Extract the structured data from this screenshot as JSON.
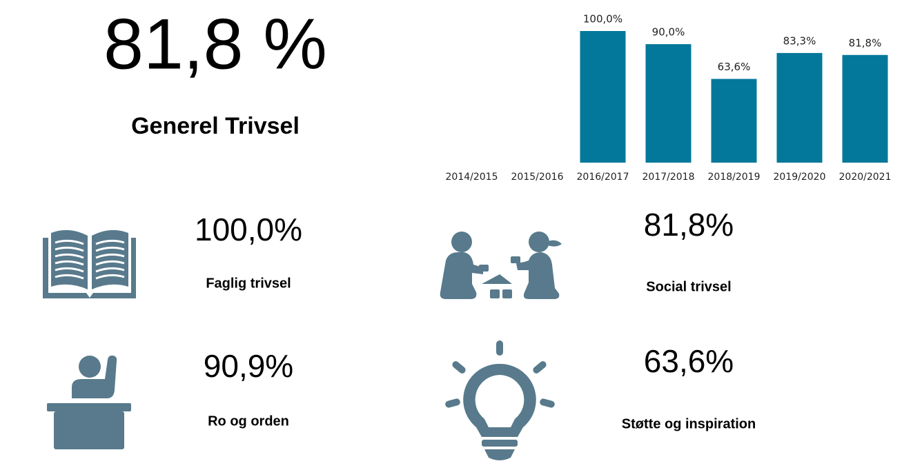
{
  "headline": {
    "value": "81,8 %",
    "label": "Generel Trivsel"
  },
  "chart_data": {
    "type": "bar",
    "categories": [
      "2014/2015",
      "2015/2016",
      "2016/2017",
      "2017/2018",
      "2018/2019",
      "2019/2020",
      "2020/2021"
    ],
    "values": [
      null,
      null,
      100,
      90,
      63.6,
      83.3,
      81.8
    ],
    "value_labels": [
      null,
      null,
      "100,0%",
      "90,0%",
      "63,6%",
      "83,3%",
      "81,8%"
    ],
    "color": "#04789a"
  },
  "metrics": [
    {
      "value": "100,0%",
      "label": "Faglig trivsel"
    },
    {
      "value": "90,9%",
      "label": "Ro og orden"
    },
    {
      "value": "81,8%",
      "label": "Social trivsel"
    },
    {
      "value": "63,6%",
      "label": "Støtte og inspiration"
    }
  ]
}
